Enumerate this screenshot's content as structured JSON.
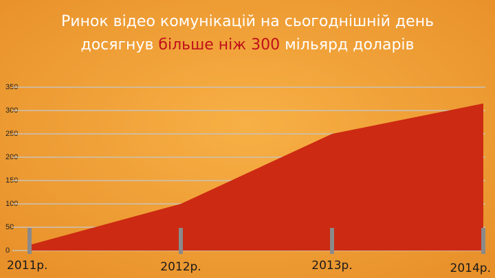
{
  "chart_data": {
    "type": "area",
    "title_line1": "Ринок відео  комунікацій на сьогоднішній  день",
    "title_line2_start": "досягнув ",
    "title_highlight": "більше ніж 300",
    "title_line2_end": " мільярд  доларів",
    "categories": [
      "2011р.",
      "2012р.",
      "2013р.",
      "2014р."
    ],
    "series": [
      {
        "color": "#cc2a12",
        "values": [
          12,
          100,
          250,
          315
        ]
      }
    ],
    "ylim": [
      0,
      350
    ],
    "yticks": [
      0,
      50,
      100,
      150,
      200,
      250,
      300,
      350
    ],
    "grid": true
  }
}
